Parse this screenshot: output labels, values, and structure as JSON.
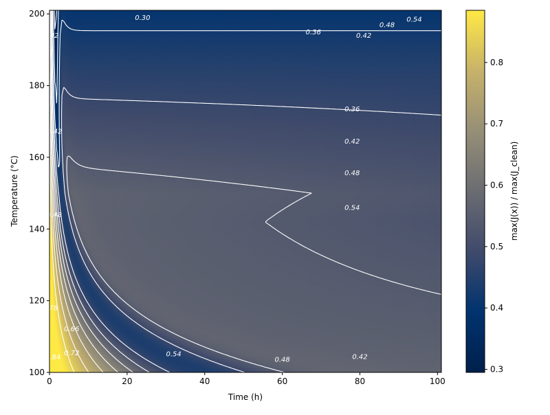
{
  "chart_data": {
    "type": "heatmap",
    "xlabel": "Time (h)",
    "ylabel": "Temperature (°C)",
    "colorbar_label": "max(J(x)) / max(J_clean)",
    "xlim": [
      0,
      101
    ],
    "ylim": [
      100,
      201
    ],
    "x_ticks": [
      0,
      20,
      40,
      60,
      80,
      100
    ],
    "y_ticks": [
      100,
      120,
      140,
      160,
      180,
      200
    ],
    "colorbar_range": [
      0.295,
      0.885
    ],
    "colorbar_ticks": [
      0.3,
      0.4,
      0.5,
      0.6,
      0.7,
      0.8
    ],
    "colormap": "cividis",
    "colormap_stops": [
      "#00204c",
      "#00336f",
      "#3f4a6b",
      "#6b6c72",
      "#968f77",
      "#c7b26a",
      "#ffe945"
    ],
    "contour_levels": [
      0.3,
      0.36,
      0.42,
      0.48,
      0.54,
      0.6,
      0.66,
      0.72,
      0.78,
      0.84
    ],
    "contour_color": "#ffffff",
    "contour_labels": [
      {
        "text": "0.30",
        "x": 24,
        "y": 199
      },
      {
        "text": "0.36",
        "x": 68,
        "y": 195
      },
      {
        "text": "0.42",
        "x": 81,
        "y": 194
      },
      {
        "text": "0.48",
        "x": 87,
        "y": 197
      },
      {
        "text": "0.54",
        "x": 94,
        "y": 198.5
      },
      {
        "text": "0.42",
        "x": 0.4,
        "y": 194
      },
      {
        "text": "0.36",
        "x": 78,
        "y": 173.5
      },
      {
        "text": "0.42",
        "x": 78,
        "y": 164.5
      },
      {
        "text": "0.48",
        "x": 78,
        "y": 155.7
      },
      {
        "text": "0.54",
        "x": 78,
        "y": 146
      },
      {
        "text": "0.42",
        "x": 1.3,
        "y": 167.3
      },
      {
        "text": "0.48",
        "x": 1.2,
        "y": 144
      },
      {
        "text": "0.78",
        "x": 0.2,
        "y": 118
      },
      {
        "text": "0.66",
        "x": 5.7,
        "y": 112.2
      },
      {
        "text": "0.72",
        "x": 5.7,
        "y": 105.5
      },
      {
        "text": "0.84",
        "x": 0.9,
        "y": 104.3
      },
      {
        "text": "0.54",
        "x": 32,
        "y": 105.2
      },
      {
        "text": "0.48",
        "x": 60,
        "y": 103.6
      },
      {
        "text": "0.42",
        "x": 80,
        "y": 104.4
      }
    ]
  }
}
